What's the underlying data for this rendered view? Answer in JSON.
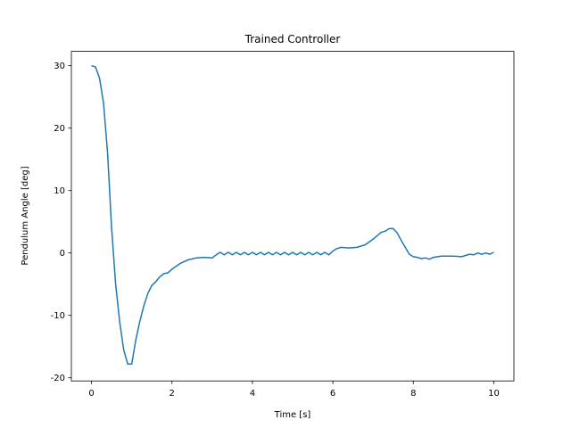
{
  "chart_data": {
    "type": "line",
    "title": "Trained Controller",
    "x_label": "Time [s]",
    "y_label": "Pendulum Angle [deg]",
    "series": [
      {
        "name": "Pendulum Angle",
        "color": "#1f77b4",
        "x": [
          0,
          0.1,
          0.2,
          0.3,
          0.4,
          0.5,
          0.6,
          0.7,
          0.8,
          0.9,
          1.0,
          1.1,
          1.2,
          1.3,
          1.4,
          1.5,
          1.6,
          1.7,
          1.8,
          1.9,
          2.0,
          2.2,
          2.4,
          2.6,
          2.8,
          3.0,
          3.1,
          3.2,
          3.3,
          3.4,
          3.5,
          3.6,
          3.7,
          3.8,
          3.9,
          4.0,
          4.1,
          4.2,
          4.3,
          4.4,
          4.5,
          4.6,
          4.7,
          4.8,
          4.9,
          5.0,
          5.1,
          5.2,
          5.3,
          5.4,
          5.5,
          5.6,
          5.7,
          5.8,
          5.9,
          6.0,
          6.1,
          6.2,
          6.4,
          6.6,
          6.8,
          7.0,
          7.2,
          7.3,
          7.4,
          7.5,
          7.6,
          7.7,
          7.8,
          7.9,
          8.0,
          8.1,
          8.2,
          8.3,
          8.4,
          8.5,
          8.7,
          9.0,
          9.2,
          9.4,
          9.5,
          9.6,
          9.7,
          9.8,
          9.9,
          10.0
        ],
        "values": [
          30,
          29.8,
          28,
          24,
          16,
          4,
          -5,
          -11,
          -15.5,
          -17.8,
          -17.8,
          -14,
          -11,
          -8.5,
          -6.5,
          -5.2,
          -4.6,
          -3.8,
          -3.3,
          -3.2,
          -2.6,
          -1.7,
          -1.1,
          -0.8,
          -0.7,
          -0.8,
          -0.3,
          0.1,
          -0.3,
          0.1,
          -0.3,
          0.1,
          -0.3,
          0.1,
          -0.3,
          0.1,
          -0.3,
          0.1,
          -0.3,
          0.1,
          -0.3,
          0.1,
          -0.3,
          0.1,
          -0.3,
          0.1,
          -0.3,
          0.1,
          -0.3,
          0.1,
          -0.3,
          0.1,
          -0.3,
          0.1,
          -0.3,
          0.3,
          0.7,
          0.9,
          0.8,
          0.9,
          1.3,
          2.2,
          3.3,
          3.5,
          3.9,
          3.9,
          3.2,
          2.0,
          0.9,
          -0.2,
          -0.6,
          -0.7,
          -0.9,
          -0.8,
          -1.0,
          -0.7,
          -0.5,
          -0.5,
          -0.6,
          -0.2,
          -0.3,
          0,
          -0.2,
          0,
          -0.2,
          0.1
        ]
      }
    ],
    "xlim": [
      -0.5,
      10.5
    ],
    "ylim": [
      -20.5,
      32.3
    ],
    "xticks": [
      0,
      2,
      4,
      6,
      8,
      10
    ],
    "yticks": [
      -20,
      -10,
      0,
      10,
      20,
      30
    ]
  }
}
